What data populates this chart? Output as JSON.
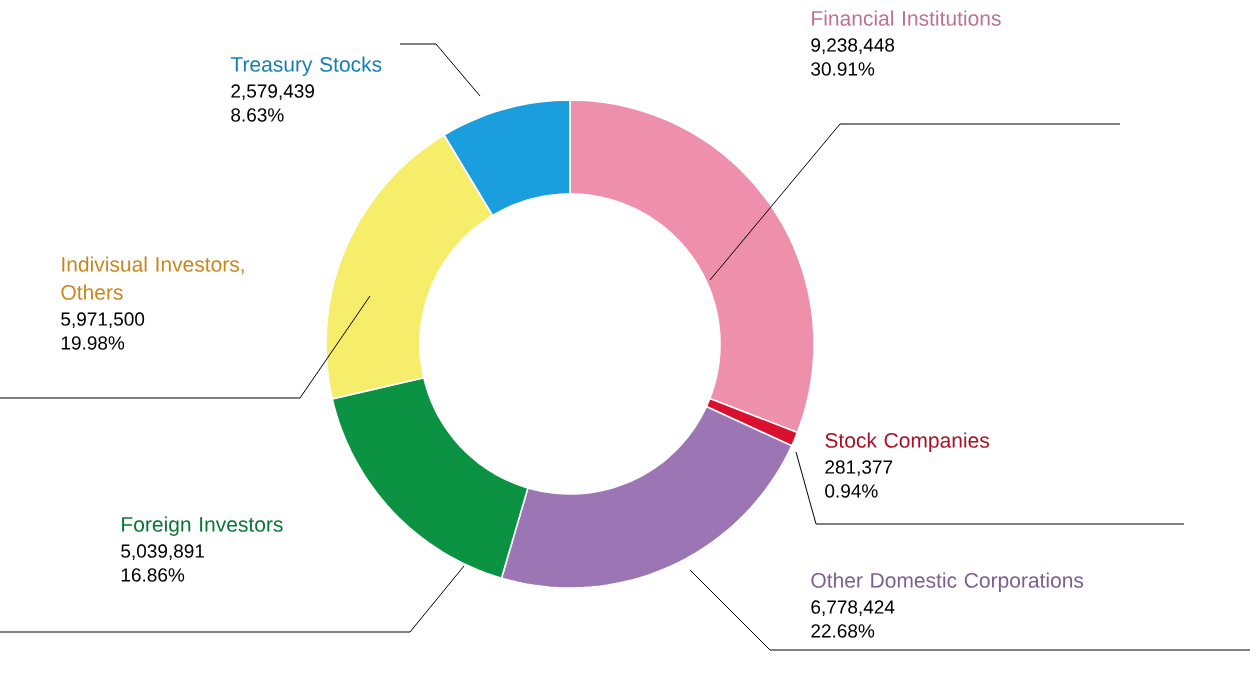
{
  "chart_data": {
    "type": "donut",
    "categories": [
      "Financial Institutions",
      "Stock Companies",
      "Other Domestic Corporations",
      "Foreign Investors",
      "Indivisual Investors, Others",
      "Treasury Stocks"
    ],
    "values": [
      9238448,
      281377,
      6778424,
      5039891,
      5971500,
      2579439
    ],
    "value_labels": [
      "9,238,448",
      "281,377",
      "6,778,424",
      "5,039,891",
      "5,971,500",
      "2,579,439"
    ],
    "annotations": [
      "30.91%",
      "0.94%",
      "22.68%",
      "16.86%",
      "19.98%",
      "8.63%"
    ],
    "colors": [
      "#ee8fab",
      "#d9112e",
      "#9b75b4",
      "#0b9242",
      "#f6ee6a",
      "#1a9ede"
    ]
  }
}
